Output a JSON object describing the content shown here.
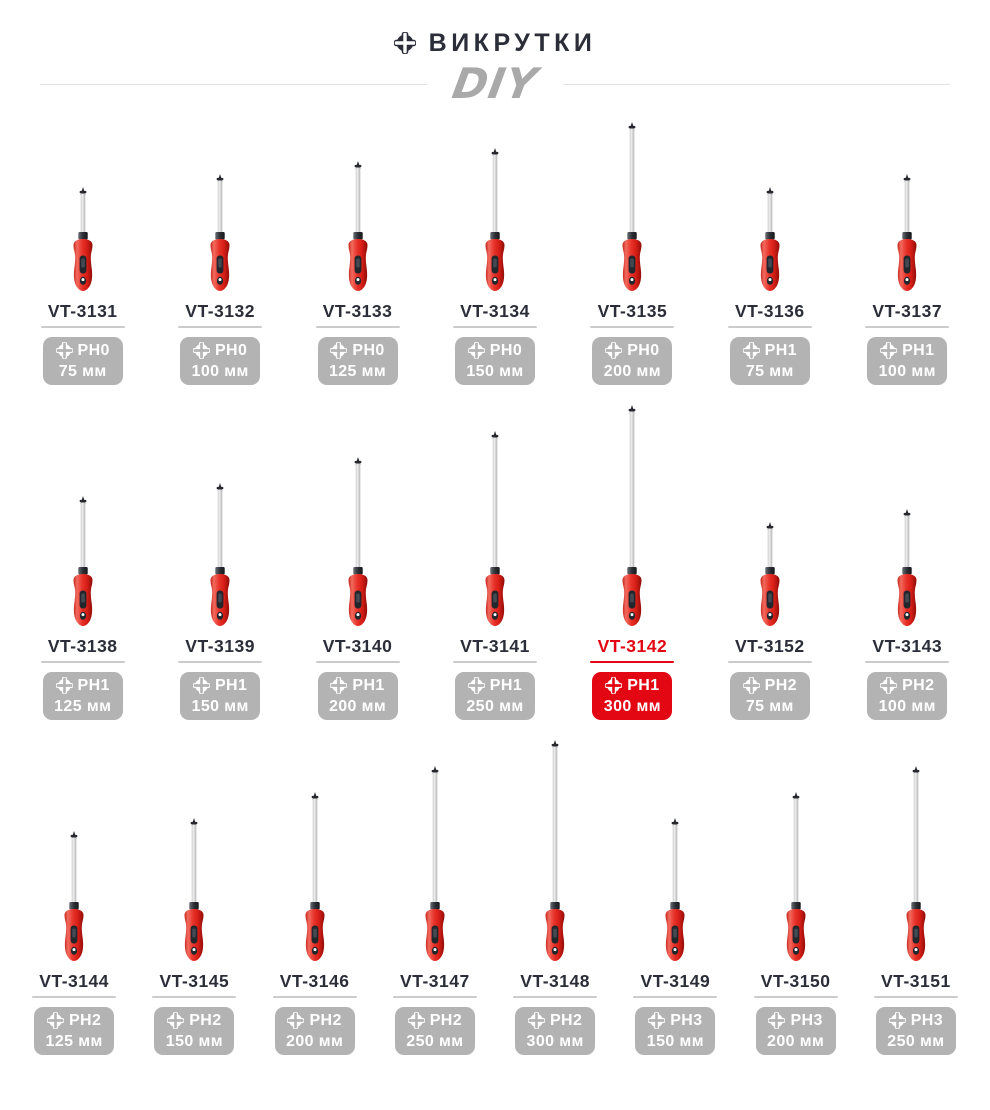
{
  "header": {
    "title": "ВИКРУТКИ",
    "title_icon": "phillips-screw-icon",
    "brand_logo": "DIY"
  },
  "colors": {
    "accent_red": "#e30613",
    "badge_gray": "#b3b3b3",
    "text_dark": "#2b2e38",
    "divider_gray": "#e2e2e2",
    "logo_gray": "#a9a9a9",
    "handle_red": "#e8332a"
  },
  "products": {
    "rows": [
      {
        "items": [
          {
            "model": "VT-3131",
            "bit": "PH0",
            "length": "75 мм",
            "length_mm": 75,
            "highlighted": false
          },
          {
            "model": "VT-3132",
            "bit": "PH0",
            "length": "100 мм",
            "length_mm": 100,
            "highlighted": false
          },
          {
            "model": "VT-3133",
            "bit": "PH0",
            "length": "125 мм",
            "length_mm": 125,
            "highlighted": false
          },
          {
            "model": "VT-3134",
            "bit": "PH0",
            "length": "150 мм",
            "length_mm": 150,
            "highlighted": false
          },
          {
            "model": "VT-3135",
            "bit": "PH0",
            "length": "200 мм",
            "length_mm": 200,
            "highlighted": false
          },
          {
            "model": "VT-3136",
            "bit": "PH1",
            "length": "75 мм",
            "length_mm": 75,
            "highlighted": false
          },
          {
            "model": "VT-3137",
            "bit": "PH1",
            "length": "100 мм",
            "length_mm": 100,
            "highlighted": false
          }
        ]
      },
      {
        "items": [
          {
            "model": "VT-3138",
            "bit": "PH1",
            "length": "125 мм",
            "length_mm": 125,
            "highlighted": false
          },
          {
            "model": "VT-3139",
            "bit": "PH1",
            "length": "150 мм",
            "length_mm": 150,
            "highlighted": false
          },
          {
            "model": "VT-3140",
            "bit": "PH1",
            "length": "200 мм",
            "length_mm": 200,
            "highlighted": false
          },
          {
            "model": "VT-3141",
            "bit": "PH1",
            "length": "250 мм",
            "length_mm": 250,
            "highlighted": false
          },
          {
            "model": "VT-3142",
            "bit": "PH1",
            "length": "300 мм",
            "length_mm": 300,
            "highlighted": true
          },
          {
            "model": "VT-3152",
            "bit": "PH2",
            "length": "75 мм",
            "length_mm": 75,
            "highlighted": false
          },
          {
            "model": "VT-3143",
            "bit": "PH2",
            "length": "100 мм",
            "length_mm": 100,
            "highlighted": false
          }
        ]
      },
      {
        "items": [
          {
            "model": "VT-3144",
            "bit": "PH2",
            "length": "125 мм",
            "length_mm": 125,
            "highlighted": false
          },
          {
            "model": "VT-3145",
            "bit": "PH2",
            "length": "150 мм",
            "length_mm": 150,
            "highlighted": false
          },
          {
            "model": "VT-3146",
            "bit": "PH2",
            "length": "200 мм",
            "length_mm": 200,
            "highlighted": false
          },
          {
            "model": "VT-3147",
            "bit": "PH2",
            "length": "250 мм",
            "length_mm": 250,
            "highlighted": false
          },
          {
            "model": "VT-3148",
            "bit": "PH2",
            "length": "300 мм",
            "length_mm": 300,
            "highlighted": false
          },
          {
            "model": "VT-3149",
            "bit": "PH3",
            "length": "150 мм",
            "length_mm": 150,
            "highlighted": false
          },
          {
            "model": "VT-3150",
            "bit": "PH3",
            "length": "200 мм",
            "length_mm": 200,
            "highlighted": false
          },
          {
            "model": "VT-3151",
            "bit": "PH3",
            "length": "250 мм",
            "length_mm": 250,
            "highlighted": false
          }
        ]
      }
    ]
  }
}
